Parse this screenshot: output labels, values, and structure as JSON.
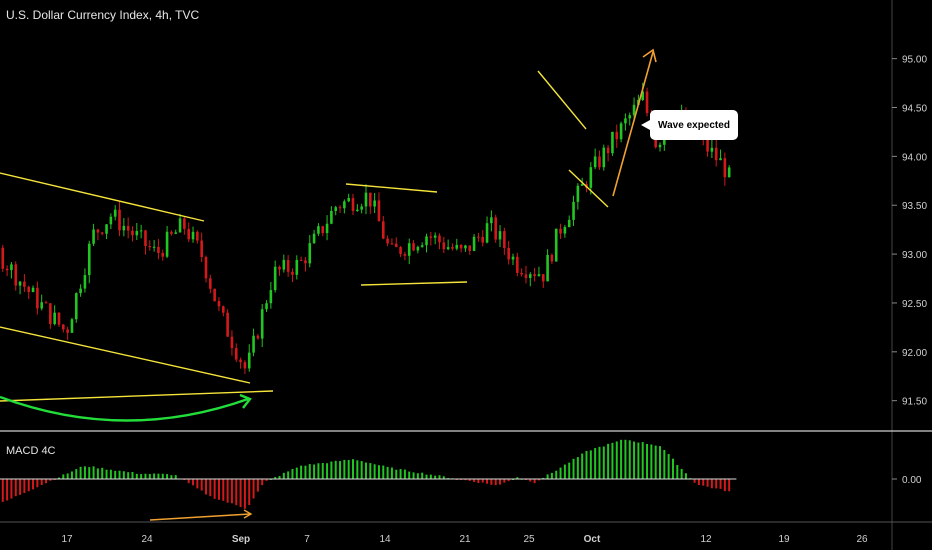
{
  "header": {
    "title": "U.S. Dollar Currency Index, 4h, TVC"
  },
  "macd": {
    "title": "MACD 4C",
    "zero_label": "0.00"
  },
  "annotation": {
    "text": "Wave expected"
  },
  "colors": {
    "up": "#22c522",
    "down": "#d21a1a",
    "trend": "#f5e43a",
    "curve": "#22dd3a",
    "arrow": "#f0a030",
    "grid_line": "#cfcfcf"
  },
  "chart_data": {
    "type": "candlestick",
    "price_axis": {
      "ticks": [
        "95.00",
        "94.50",
        "94.00",
        "93.50",
        "93.00",
        "92.50",
        "92.00",
        "91.50"
      ],
      "range": [
        91.2,
        95.6
      ]
    },
    "x_ticks": [
      "17",
      "24",
      "Sep",
      "7",
      "14",
      "21",
      "25",
      "Oct",
      "12",
      "19",
      "26"
    ],
    "series": [
      {
        "name": "price",
        "segments": [
          [
            12,
            93.6
          ],
          [
            17,
            93.3
          ],
          [
            20,
            92.6
          ],
          [
            22,
            92.2
          ],
          [
            23.5,
            93.2
          ],
          [
            24.5,
            93.4
          ],
          [
            27,
            93.0
          ],
          [
            28.5,
            93.3
          ],
          [
            29.5,
            93.0
          ],
          [
            30.5,
            92.4
          ],
          [
            31.5,
            92.0
          ],
          [
            32,
            91.8
          ],
          [
            33.5,
            92.8
          ],
          [
            35,
            92.9
          ],
          [
            37,
            93.5
          ],
          [
            38.8,
            93.6
          ],
          [
            40,
            93.0
          ],
          [
            42,
            93.2
          ],
          [
            44,
            93.0
          ],
          [
            45.5,
            93.3
          ],
          [
            47,
            92.9
          ],
          [
            48.5,
            92.8
          ],
          [
            49.5,
            93.3
          ],
          [
            51,
            93.8
          ],
          [
            52.5,
            94.2
          ],
          [
            54,
            94.6
          ],
          [
            54.8,
            94.1
          ],
          [
            55.5,
            94.5
          ],
          [
            57,
            94.2
          ],
          [
            58.5,
            93.9
          ],
          [
            59,
            93.7
          ]
        ]
      },
      {
        "name": "macd",
        "points": [
          [
            12,
            0.0
          ],
          [
            14,
            -0.04
          ],
          [
            16,
            -0.09
          ],
          [
            18,
            -0.25
          ],
          [
            20,
            -0.1
          ],
          [
            23,
            0.12
          ],
          [
            26,
            0.05
          ],
          [
            28,
            0.04
          ],
          [
            30,
            -0.16
          ],
          [
            32,
            -0.27
          ],
          [
            33,
            -0.03
          ],
          [
            35,
            0.12
          ],
          [
            38,
            0.18
          ],
          [
            40,
            0.1
          ],
          [
            43,
            0.02
          ],
          [
            46,
            -0.06
          ],
          [
            47,
            0.02
          ],
          [
            48,
            -0.03
          ],
          [
            49,
            0.06
          ],
          [
            51,
            0.26
          ],
          [
            53,
            0.36
          ],
          [
            55,
            0.3
          ],
          [
            56,
            0.12
          ],
          [
            57,
            -0.05
          ],
          [
            59,
            -0.12
          ]
        ]
      }
    ],
    "ylim": [
      91.2,
      95.6
    ],
    "xlim": [
      10,
      72
    ],
    "grid": false,
    "legend": "none"
  }
}
